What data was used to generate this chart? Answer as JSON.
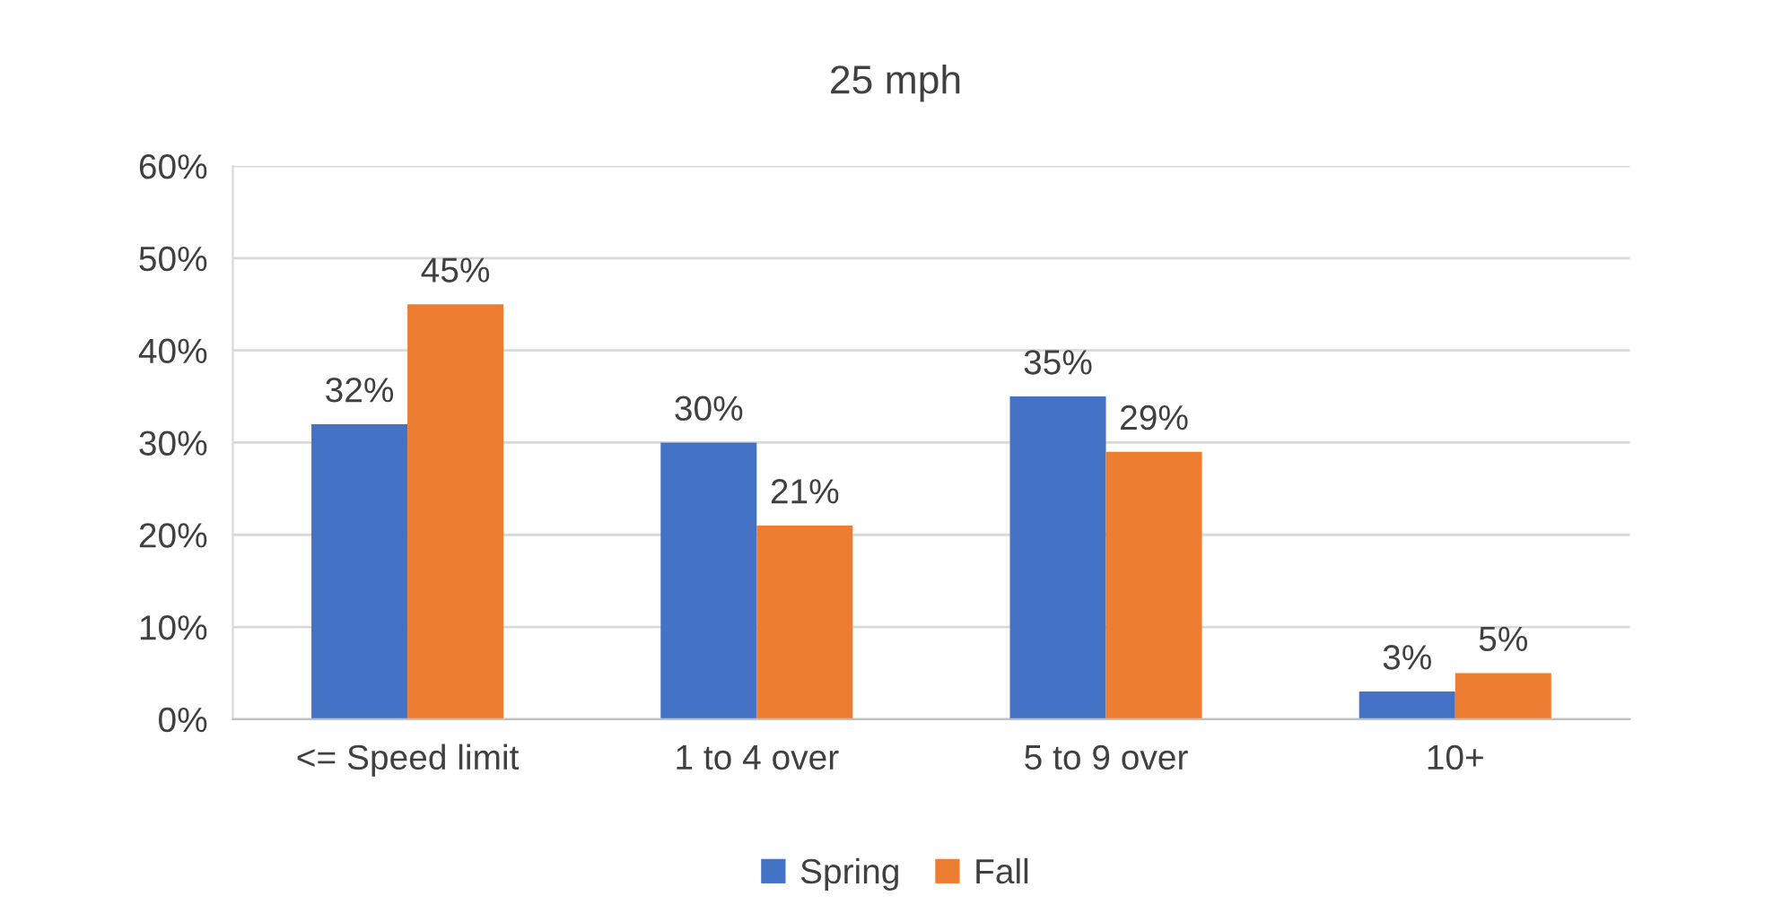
{
  "chart_data": {
    "type": "bar",
    "title": "25 mph",
    "categories": [
      "<= Speed limit",
      "1 to 4 over",
      "5 to 9 over",
      "10+"
    ],
    "series": [
      {
        "name": "Spring",
        "color": "#4472c4",
        "values": [
          32,
          30,
          35,
          3
        ],
        "value_labels": [
          "32%",
          "30%",
          "35%",
          "3%"
        ]
      },
      {
        "name": "Fall",
        "color": "#ed7d31",
        "values": [
          45,
          21,
          29,
          5
        ],
        "value_labels": [
          "45%",
          "21%",
          "29%",
          "5%"
        ]
      }
    ],
    "ylim": [
      0,
      60
    ],
    "yticks": [
      {
        "value": 0,
        "label": "0%"
      },
      {
        "value": 10,
        "label": "10%"
      },
      {
        "value": 20,
        "label": "20%"
      },
      {
        "value": 30,
        "label": "30%"
      },
      {
        "value": 40,
        "label": "40%"
      },
      {
        "value": 50,
        "label": "50%"
      },
      {
        "value": 60,
        "label": "60%"
      }
    ],
    "grid": "y",
    "legend": "bottom"
  }
}
